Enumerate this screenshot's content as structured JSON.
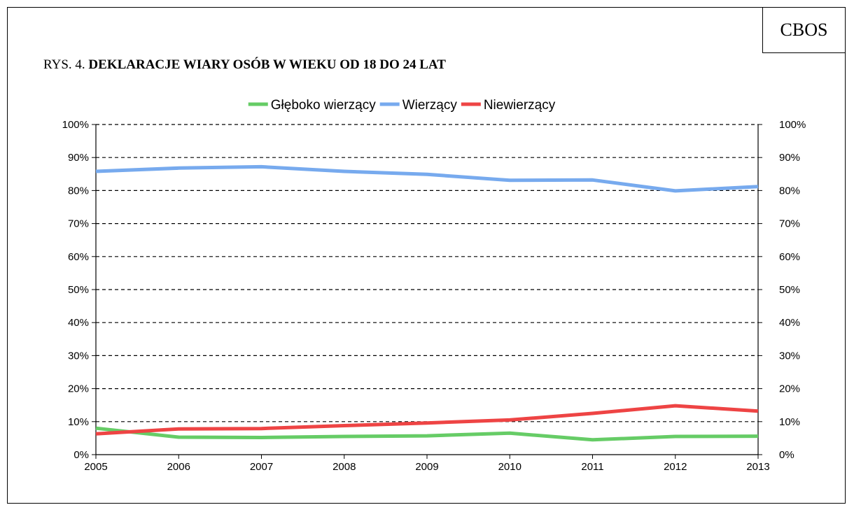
{
  "source_label": "CBOS",
  "figure": {
    "prefix": "RYS. 4.",
    "title": "DEKLARACJE WIARY OSÓB W WIEKU OD 18 DO 24 LAT"
  },
  "chart_data": {
    "type": "line",
    "title": "DEKLARACJE WIARY OSÓB W WIEKU OD 18 DO 24 LAT",
    "xlabel": "",
    "ylabel": "",
    "x": [
      "2005",
      "2006",
      "2007",
      "2008",
      "2009",
      "2010",
      "2011",
      "2012",
      "2013"
    ],
    "ylim": [
      0,
      100
    ],
    "y_ticks": [
      "0%",
      "10%",
      "20%",
      "30%",
      "40%",
      "50%",
      "60%",
      "70%",
      "80%",
      "90%",
      "100%"
    ],
    "y_axis_both_sides": true,
    "grid": "horizontal dashed",
    "legend_position": "top-center",
    "series": [
      {
        "name": "Głęboko wierzący",
        "color": "#66cc66",
        "values": [
          8,
          5.3,
          5.2,
          5.5,
          5.7,
          6.5,
          4.5,
          5.5,
          5.6
        ]
      },
      {
        "name": "Wierzący",
        "color": "#77aaee",
        "values": [
          85.8,
          86.8,
          87.2,
          85.8,
          84.9,
          83.1,
          83.2,
          79.9,
          81.2
        ]
      },
      {
        "name": "Niewierzący",
        "color": "#ee4444",
        "values": [
          6.3,
          7.8,
          7.9,
          8.8,
          9.6,
          10.5,
          12.5,
          14.8,
          13.2
        ]
      }
    ]
  }
}
